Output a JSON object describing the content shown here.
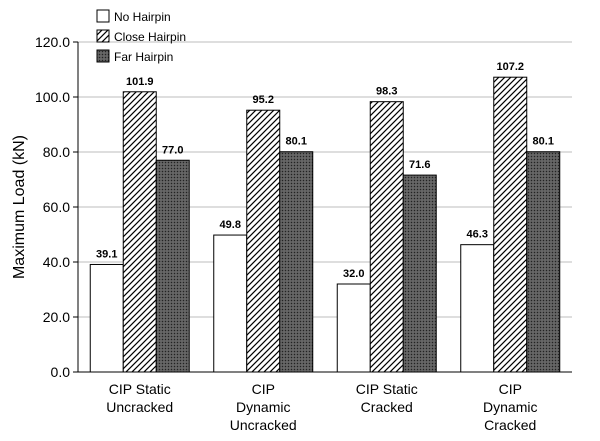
{
  "chart_data": {
    "type": "bar",
    "title": "",
    "xlabel": "",
    "ylabel": "Maximum Load (kN)",
    "ylim": [
      0,
      120
    ],
    "yticks": [
      "0.0",
      "20.0",
      "40.0",
      "60.0",
      "80.0",
      "100.0",
      "120.0"
    ],
    "grid": true,
    "legend_position": "top-left",
    "categories": [
      [
        "CIP Static",
        "Uncracked"
      ],
      [
        "CIP",
        "Dynamic",
        "Uncracked"
      ],
      [
        "CIP Static",
        "Cracked"
      ],
      [
        "CIP",
        "Dynamic",
        "Cracked"
      ]
    ],
    "series": [
      {
        "name": "No Hairpin",
        "pattern": "white",
        "values": [
          39.1,
          49.8,
          32.0,
          46.3
        ],
        "labels": [
          "39.1",
          "49.8",
          "32.0",
          "46.3"
        ]
      },
      {
        "name": "Close Hairpin",
        "pattern": "hatch",
        "values": [
          101.9,
          95.2,
          98.3,
          107.2
        ],
        "labels": [
          "101.9",
          "95.2",
          "98.3",
          "107.2"
        ]
      },
      {
        "name": "Far Hairpin",
        "pattern": "dark-dots",
        "values": [
          77.0,
          80.1,
          71.6,
          80.1
        ],
        "labels": [
          "77.0",
          "80.1",
          "71.6",
          "80.1"
        ]
      }
    ]
  }
}
